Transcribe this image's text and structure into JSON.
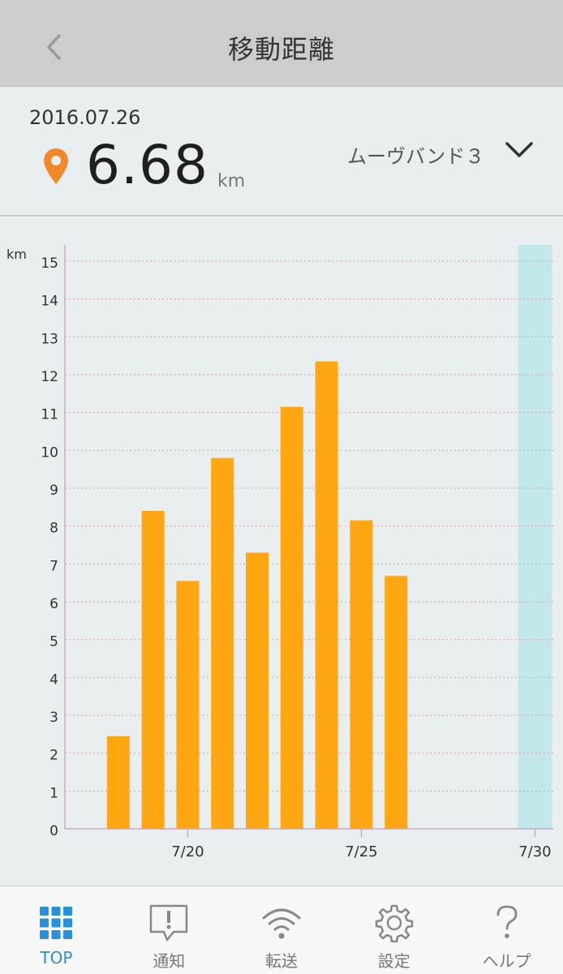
{
  "header": {
    "title": "移動距離"
  },
  "summary": {
    "date": "2016.07.26",
    "distance": "6.68",
    "unit": "km",
    "device": "ムーヴバンド３"
  },
  "colors": {
    "bar": "#fea712",
    "highlight": "#c3e8ec",
    "accent": "#2a8fd9",
    "pin": "#f0892a"
  },
  "chart_data": {
    "type": "bar",
    "ylabel": "km",
    "ylim": [
      0,
      15
    ],
    "yticks": [
      "0",
      "1",
      "2",
      "3",
      "4",
      "5",
      "6",
      "7",
      "8",
      "9",
      "10",
      "11",
      "12",
      "13",
      "14",
      "15"
    ],
    "x_tick_labels": [
      "7/20",
      "7/25",
      "7/30"
    ],
    "categories": [
      "7/17",
      "7/18",
      "7/19",
      "7/20",
      "7/21",
      "7/22",
      "7/23",
      "7/24",
      "7/25",
      "7/26",
      "7/27",
      "7/28",
      "7/29",
      "7/30"
    ],
    "values": [
      null,
      2.45,
      8.4,
      6.55,
      9.8,
      7.3,
      11.15,
      12.35,
      8.15,
      6.68,
      null,
      null,
      null,
      null
    ],
    "highlighted_category": "7/30",
    "grid": true
  },
  "tabs": [
    {
      "label": "TOP",
      "icon": "grid-icon",
      "active": true
    },
    {
      "label": "通知",
      "icon": "notification-icon",
      "active": false
    },
    {
      "label": "転送",
      "icon": "wifi-icon",
      "active": false
    },
    {
      "label": "設定",
      "icon": "gear-icon",
      "active": false
    },
    {
      "label": "ヘルプ",
      "icon": "help-icon",
      "active": false
    }
  ]
}
